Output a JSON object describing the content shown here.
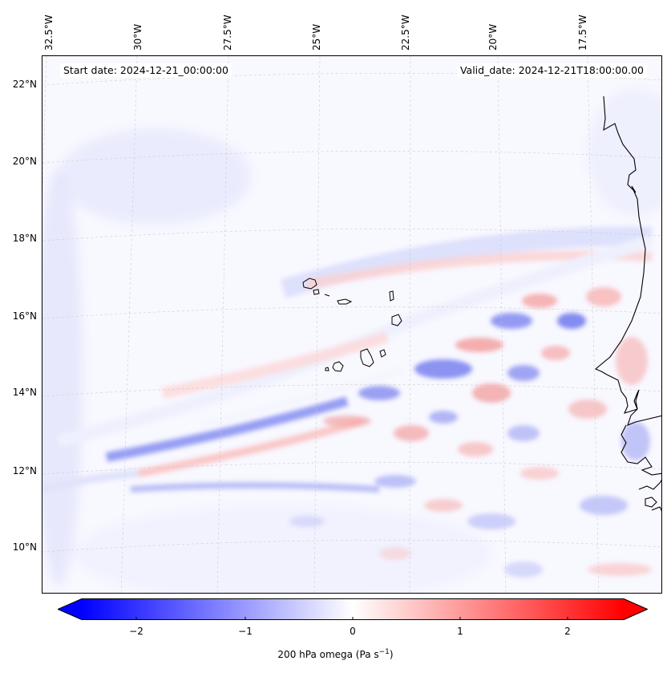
{
  "map": {
    "start_label": "Start date: 2024-12-21_00:00:00",
    "valid_label": "Valid_date: 2024-12-21T18:00:00.00",
    "lon_labels": [
      "32.5°W",
      "30°W",
      "27.5°W",
      "25°W",
      "22.5°W",
      "20°W",
      "17.5°W"
    ],
    "lat_labels": [
      "22°N",
      "20°N",
      "18°N",
      "16°N",
      "14°N",
      "12°N",
      "10°N"
    ],
    "land_outline_color": "#000000",
    "gridline_color": "#c8c8c8"
  },
  "colorbar": {
    "label": "200 hPa omega (Pa s",
    "label_sup": "−1",
    "label_close": ")",
    "ticks": [
      "−2",
      "−1",
      "0",
      "1",
      "2"
    ],
    "range": [
      -2.75,
      2.75
    ],
    "colormap": "bwr",
    "low_color": "#0000ff",
    "mid_color": "#ffffff",
    "high_color": "#ff0000"
  }
}
